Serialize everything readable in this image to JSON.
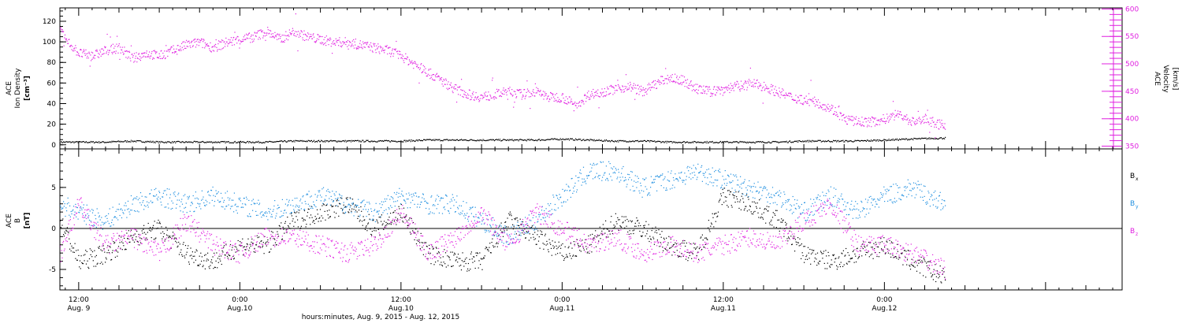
{
  "figure": {
    "xlabel": "hours:minutes, Aug.  9, 2015 - Aug. 12, 2015",
    "x_ticks": [
      {
        "hour": 12,
        "time": "12:00",
        "date": "Aug. 9"
      },
      {
        "hour": 24,
        "time": "0:00",
        "date": "Aug.10"
      },
      {
        "hour": 36,
        "time": "12:00",
        "date": "Aug.10"
      },
      {
        "hour": 48,
        "time": "0:00",
        "date": "Aug.11"
      },
      {
        "hour": 60,
        "time": "12:00",
        "date": "Aug.11"
      },
      {
        "hour": 72,
        "time": "0:00",
        "date": "Aug.12"
      }
    ]
  },
  "chart_data": [
    {
      "type": "scatter",
      "name": "ace-plasma-panel",
      "x_unit": "hours since Aug. 9, 2015 00:00",
      "xlim": [
        10.6,
        89.7
      ],
      "ylabel_left": [
        "ACE",
        "Ion Density",
        "[cm⁻³]"
      ],
      "ylabel_right": [
        "ACE",
        "Velocity",
        "[km/s]"
      ],
      "left_axis": {
        "ylim": [
          -4,
          133
        ],
        "ticks": [
          0,
          20,
          40,
          60,
          80,
          100,
          120
        ],
        "color": "#000000"
      },
      "right_axis": {
        "ylim": [
          345,
          602
        ],
        "ticks": [
          350,
          400,
          450,
          500,
          550,
          600
        ],
        "color": "#e020e0"
      },
      "series": [
        {
          "axis": "left",
          "color": "#000000",
          "x": [
            10.6,
            12,
            14,
            16,
            18,
            20,
            22,
            24,
            26,
            28,
            30,
            32,
            34,
            36,
            38,
            40,
            42,
            44,
            46,
            48,
            50,
            52,
            54,
            56,
            58,
            60,
            62,
            64,
            66,
            68,
            70,
            72,
            74,
            76.5
          ],
          "y": [
            3,
            3,
            3,
            4,
            3,
            3,
            3,
            3,
            3,
            4,
            4,
            4,
            4,
            4,
            5,
            5,
            5,
            5,
            5,
            6,
            5,
            4,
            4,
            3,
            3,
            3,
            3,
            3,
            4,
            4,
            4,
            5,
            6,
            7
          ]
        },
        {
          "axis": "right",
          "color": "#e020e0",
          "x": [
            10.6,
            11,
            12,
            13,
            14,
            15,
            16,
            17,
            18,
            19,
            20,
            21,
            22,
            23,
            24,
            25,
            26,
            27,
            28,
            29,
            30,
            31,
            32,
            33,
            34,
            35,
            36,
            37,
            38,
            39,
            40,
            41,
            42,
            43,
            44,
            45,
            46,
            47,
            48,
            49,
            50,
            51,
            52,
            53,
            54,
            55,
            56,
            57,
            58,
            59,
            60,
            61,
            62,
            63,
            64,
            65,
            66,
            67,
            68,
            69,
            70,
            71,
            72,
            73,
            74,
            75,
            76,
            76.5
          ],
          "y": [
            560,
            545,
            520,
            515,
            525,
            530,
            510,
            520,
            515,
            525,
            535,
            540,
            530,
            540,
            545,
            550,
            560,
            545,
            560,
            550,
            545,
            540,
            540,
            535,
            530,
            525,
            515,
            500,
            485,
            470,
            455,
            445,
            440,
            445,
            450,
            445,
            450,
            440,
            440,
            425,
            445,
            450,
            455,
            460,
            450,
            465,
            475,
            470,
            455,
            450,
            455,
            460,
            465,
            460,
            450,
            440,
            435,
            430,
            420,
            400,
            395,
            395,
            400,
            410,
            395,
            400,
            390,
            390
          ]
        }
      ]
    },
    {
      "type": "scatter",
      "name": "ace-magnetic-field-panel",
      "x_unit": "hours since Aug. 9, 2015 00:00",
      "xlim": [
        10.6,
        89.7
      ],
      "ylabel_left": [
        "ACE",
        "B",
        "[nT]"
      ],
      "left_axis": {
        "ylim": [
          -7.5,
          9.7
        ],
        "ticks": [
          -5,
          0,
          5
        ],
        "color": "#000000"
      },
      "zero_line": true,
      "legend": [
        {
          "label": "B",
          "sub": "x",
          "color": "#000000"
        },
        {
          "label": "B",
          "sub": "y",
          "color": "#1f8fe0"
        },
        {
          "label": "B",
          "sub": "z",
          "color": "#e020e0"
        }
      ],
      "series": [
        {
          "color": "#000000",
          "x": [
            10.6,
            12,
            14,
            16,
            18,
            20,
            22,
            24,
            26,
            28,
            30,
            32,
            34,
            36,
            38,
            40,
            42,
            44,
            46,
            48,
            50,
            52,
            54,
            56,
            58,
            60,
            62,
            64,
            66,
            68,
            70,
            72,
            74,
            76.5
          ],
          "y": [
            1,
            -4,
            -3,
            -1,
            0,
            -3,
            -4,
            -2,
            -2,
            1,
            2,
            3,
            0,
            2,
            -3,
            -4,
            -4,
            1,
            -1,
            -3,
            -2,
            1,
            0,
            -2,
            -3,
            4,
            3,
            1,
            -3,
            -4,
            -3,
            -2,
            -4,
            -6
          ]
        },
        {
          "color": "#1f8fe0",
          "x": [
            10.6,
            12,
            14,
            16,
            18,
            20,
            22,
            24,
            26,
            28,
            30,
            32,
            34,
            36,
            38,
            40,
            42,
            44,
            46,
            48,
            50,
            52,
            54,
            56,
            58,
            60,
            62,
            64,
            66,
            68,
            70,
            72,
            74,
            76.5
          ],
          "y": [
            3,
            2,
            1,
            3,
            4,
            3,
            4,
            3,
            2,
            3,
            4,
            3,
            2,
            4,
            3,
            3,
            1,
            -1,
            1,
            4,
            7,
            7,
            5,
            6,
            7,
            6,
            5,
            4,
            2,
            4,
            2,
            4,
            5,
            3
          ]
        },
        {
          "color": "#e020e0",
          "x": [
            10.6,
            12,
            14,
            16,
            18,
            20,
            22,
            24,
            26,
            28,
            30,
            32,
            34,
            36,
            38,
            40,
            42,
            44,
            46,
            48,
            50,
            52,
            54,
            56,
            58,
            60,
            62,
            64,
            66,
            68,
            70,
            72,
            74,
            76.5
          ],
          "y": [
            -3,
            3,
            -2,
            -1,
            -3,
            1,
            -2,
            -3,
            -1,
            -1,
            -2,
            -3,
            -2,
            2,
            -3,
            -1,
            2,
            -2,
            2,
            0,
            -2,
            -1,
            -3,
            -2,
            -3,
            -2,
            -1,
            -2,
            1,
            3,
            -2,
            -2,
            -3,
            -5
          ]
        }
      ]
    }
  ]
}
